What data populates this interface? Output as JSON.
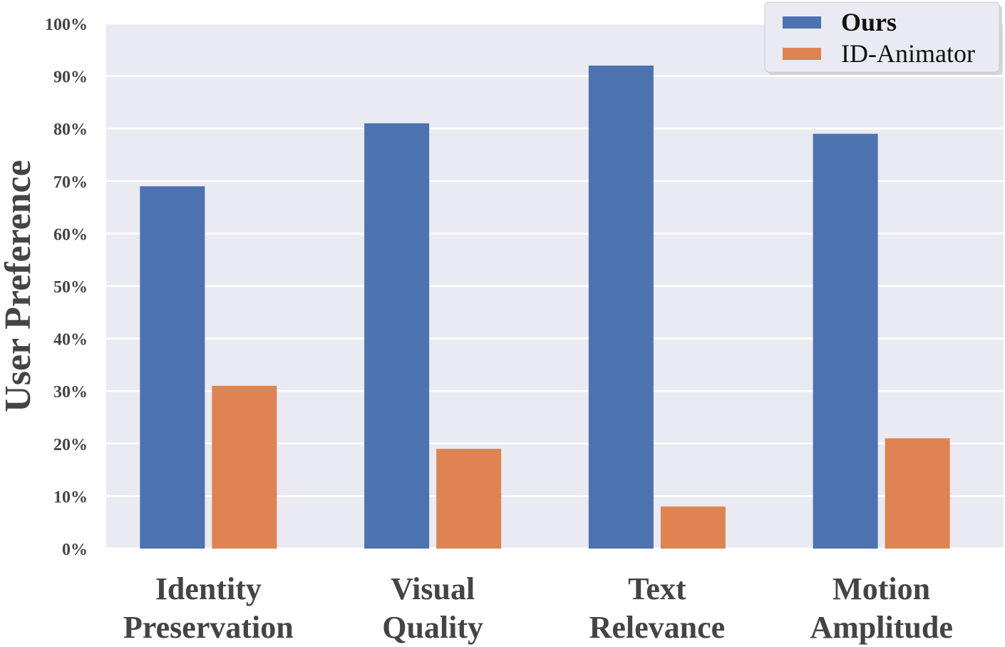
{
  "chart_data": {
    "type": "bar",
    "ylabel": "User Preference",
    "xlabel": "",
    "ylim": [
      0,
      100
    ],
    "yticks": [
      "0%",
      "10%",
      "20%",
      "30%",
      "40%",
      "50%",
      "60%",
      "70%",
      "80%",
      "90%",
      "100%"
    ],
    "categories": [
      [
        "Identity",
        "Preservation"
      ],
      [
        "Visual",
        "Quality"
      ],
      [
        "Text",
        "Relevance"
      ],
      [
        "Motion",
        "Amplitude"
      ]
    ],
    "series": [
      {
        "name": "Ours",
        "values": [
          69,
          81,
          92,
          79
        ],
        "color": "#4c72b0"
      },
      {
        "name": "ID-Animator",
        "values": [
          31,
          19,
          8,
          21
        ],
        "color": "#dd8452"
      }
    ],
    "grid": true,
    "legend": "top-right",
    "background": "#eaeaf2"
  }
}
